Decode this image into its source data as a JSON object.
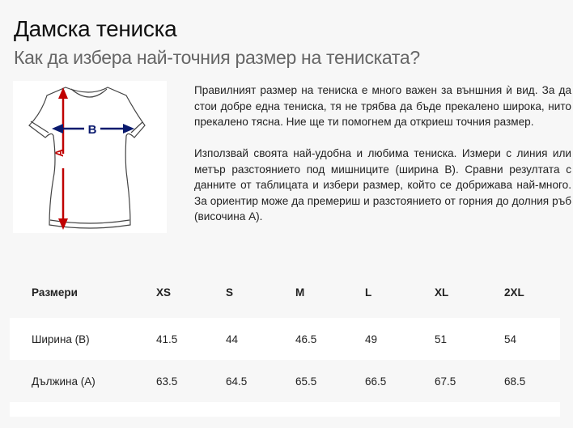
{
  "title": "Дамска тениска",
  "subtitle": "Как да избера най-точния размер на тениската?",
  "diagram": {
    "label_a": "A",
    "label_b": "B",
    "color_a": "#c00000",
    "color_b": "#0a1a6e"
  },
  "paragraphs": [
    "Правилният размер на тениска е много важен за външния ѝ вид. За да стои добре една тениска, тя не трябва да бъде прекалено широка, нито прекалено тясна. Ние ще ти помогнем да откриеш точния размер.",
    "Използвай своята най-удобна и любима тениска. Измери с линия или метър разстоянието под мишниците (ширина B). Сравни резултата с данните от таблицата и избери размер, който се добрижава най-много. За ориентир може да премериш и разстоянието от горния до долния ръб (височина A)."
  ],
  "table": {
    "headers": [
      "Размери",
      "XS",
      "S",
      "M",
      "L",
      "XL",
      "2XL"
    ],
    "rows": [
      [
        "Ширина (B)",
        "41.5",
        "44",
        "46.5",
        "49",
        "51",
        "54"
      ],
      [
        "Дължина (A)",
        "63.5",
        "64.5",
        "65.5",
        "66.5",
        "67.5",
        "68.5"
      ]
    ]
  }
}
